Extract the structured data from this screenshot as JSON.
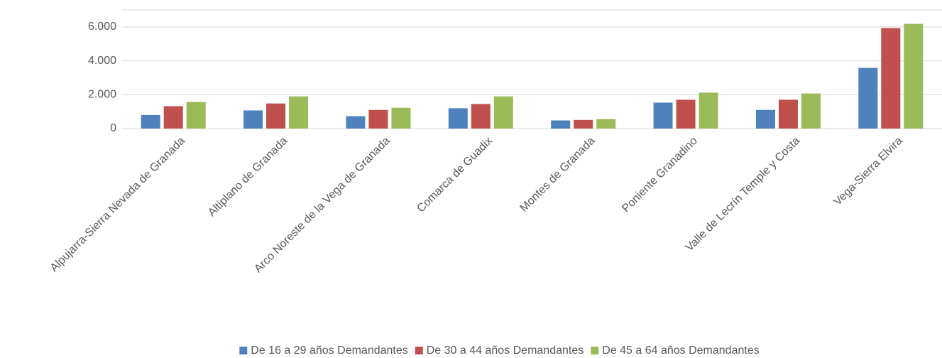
{
  "chart_data": {
    "type": "bar",
    "categories": [
      "Alpujarra-Sierra Nevada de Granada",
      "Altiplano de Granada",
      "Arco Noreste de la Vega de Granada",
      "Comarca de Guadix",
      "Montes de Granada",
      "Poniente Granadino",
      "Valle de Lecrín Temple y Costa",
      "Vega-Sierra Elvira"
    ],
    "series": [
      {
        "name": "De 16 a 29 años Demandantes",
        "color": "#4f81bd",
        "values": [
          800,
          1070,
          730,
          1200,
          480,
          1530,
          1100,
          3580
        ]
      },
      {
        "name": "De 30 a 44 años Demandantes",
        "color": "#c0504d",
        "values": [
          1320,
          1480,
          1100,
          1450,
          510,
          1700,
          1700,
          5930
        ]
      },
      {
        "name": "De 45 a 64 años Demandantes",
        "color": "#9bbb59",
        "values": [
          1570,
          1900,
          1230,
          1900,
          560,
          2120,
          2070,
          6180
        ]
      }
    ],
    "ylim": [
      0,
      7000
    ],
    "yticks": [
      0,
      {
        "value": 2000,
        "label": "2.000"
      },
      {
        "value": 4000,
        "label": "4.000"
      },
      {
        "value": 6000,
        "label": "6.000"
      }
    ],
    "grid": true,
    "legend": "bottom"
  }
}
